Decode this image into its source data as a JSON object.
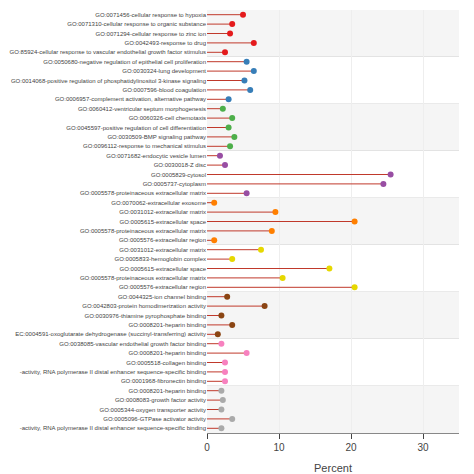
{
  "chart_data": {
    "type": "lollipop",
    "orientation": "horizontal",
    "xlabel": "Percent",
    "categories": [
      "GO:0071456-cellular response to hypoxia",
      "GO:0071310-cellular response to organic substance",
      "GO:0071294-cellular response to zinc ion",
      "GO:0042493-response to drug",
      "GO:85924-cellular response to vascular endothelial growth factor stimulus",
      "GO:0050680-negative regulation of epithelial cell proliferation",
      "GO:0030324-lung development",
      "GO:0014068-positive regulation of phosphatidylinositol 3-kinase signaling",
      "GO:0007596-blood coagulation",
      "GO:0006957-complement activation, alternative pathway",
      "GO:0060412-ventricular septum morphogenesis",
      "GO:0060326-cell chemotaxis",
      "GO:0045597-positive regulation of cell differentiation",
      "GO:0030509-BMP signaling pathway",
      "GO:0096112-response to mechanical stimulus",
      "GO:0071682-endocytic vesicle lumen",
      "GO:0030018-Z disc",
      "GO:0005829-cytosol",
      "GO:0005737-cytoplasm",
      "GO:0005578-proteinaceous extracellular matrix",
      "GO:0070062-extracellular exosome",
      "GO:0031012-extracellular matrix",
      "GO:0005615-extracellular space",
      "GO:0005578-proteinaceous extracellular matrix",
      "GO:0005576-extracellular region",
      "GO:0031012-extracellular matrix",
      "GO:0005833-hemoglobin complex",
      "GO:0005615-extracellular space",
      "GO:0005578-proteinaceous extracellular matrix",
      "GO:0005576-extracellular region",
      "GO:0044325-ion channel binding",
      "GO:0042803-protein homodimerization activity",
      "GO:0030976-thiamine pyrophosphate binding",
      "GO:0008201-heparin binding",
      "EC:0004591-oxoglutarate dehydrogenase (succinyl-transferring) activity",
      "GO:0038085-vascular endothelial growth factor binding",
      "GO:0008201-heparin binding",
      "GO:0005518-collagen binding",
      "-activity, RNA polymerase II distal enhancer sequence-specific binding",
      "GO:0001968-fibronectin binding",
      "GO:0008201-heparin binding",
      "GO:0008083-growth factor activity",
      "GO:0005344-oxygen transporter activity",
      "GO:0005096-GTPase activator activity",
      "-activity, RNA polymerase II distal enhancer sequence-specific binding"
    ],
    "values": [
      5.0,
      3.5,
      3.2,
      6.5,
      2.5,
      5.5,
      6.5,
      5.2,
      6.0,
      3.0,
      2.2,
      3.5,
      3.0,
      3.8,
      3.2,
      1.8,
      2.5,
      25.5,
      24.5,
      5.5,
      1.0,
      9.5,
      20.5,
      9.0,
      1.0,
      7.5,
      3.5,
      17.0,
      10.5,
      20.5,
      2.8,
      8.0,
      2.0,
      3.5,
      1.5,
      2.0,
      5.5,
      2.5,
      2.5,
      2.5,
      2.0,
      2.2,
      2.0,
      3.5,
      2.0
    ],
    "colors": [
      "#e41a1c",
      "#e41a1c",
      "#e41a1c",
      "#e41a1c",
      "#e41a1c",
      "#377eb8",
      "#377eb8",
      "#377eb8",
      "#377eb8",
      "#377eb8",
      "#4daf4a",
      "#4daf4a",
      "#4daf4a",
      "#4daf4a",
      "#4daf4a",
      "#984ea3",
      "#984ea3",
      "#984ea3",
      "#984ea3",
      "#984ea3",
      "#ff7f00",
      "#ff7f00",
      "#ff7f00",
      "#ff7f00",
      "#ff7f00",
      "#e6d800",
      "#e6d800",
      "#e6d800",
      "#e6d800",
      "#e6d800",
      "#8B4513",
      "#8B4513",
      "#8B4513",
      "#8B4513",
      "#8B4513",
      "#f781bf",
      "#f781bf",
      "#f781bf",
      "#f781bf",
      "#f781bf",
      "#aaaaaa",
      "#aaaaaa",
      "#aaaaaa",
      "#aaaaaa",
      "#aaaaaa"
    ],
    "color": "#c0392b",
    "xlim": [
      0,
      35
    ],
    "xticks": [
      0,
      10,
      20,
      30
    ],
    "grid": true
  }
}
